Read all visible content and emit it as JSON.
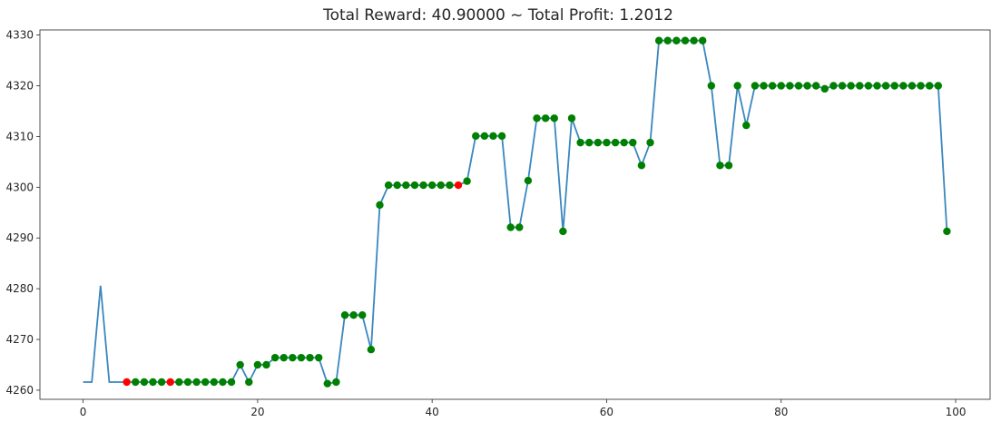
{
  "chart_data": {
    "type": "line",
    "title": "Total Reward: 40.90000 ~ Total Profit: 1.2012",
    "xlabel": "",
    "ylabel": "",
    "xlim": [
      -4.95,
      103.95
    ],
    "ylim": [
      4258.2,
      4331.0
    ],
    "grid": false,
    "x_ticks": [
      0,
      20,
      40,
      60,
      80,
      100
    ],
    "y_ticks": [
      4260,
      4270,
      4280,
      4290,
      4300,
      4310,
      4320,
      4330
    ],
    "colors": {
      "line": "#3a87bf",
      "long": "#008000",
      "short": "#ff0000"
    },
    "series": [
      {
        "x": [
          0,
          1,
          2,
          3,
          4,
          5,
          6,
          7,
          8,
          9,
          10,
          11,
          12,
          13,
          14,
          15,
          16,
          17,
          18,
          19,
          20,
          21,
          22,
          23,
          24,
          25,
          26,
          27,
          28,
          29,
          30,
          31,
          32,
          33,
          34,
          35,
          36,
          37,
          38,
          39,
          40,
          41,
          42,
          43,
          44,
          45,
          46,
          47,
          48,
          49,
          50,
          51,
          52,
          53,
          54,
          55,
          56,
          57,
          58,
          59,
          60,
          61,
          62,
          63,
          64,
          65,
          66,
          67,
          68,
          69,
          70,
          71,
          72,
          73,
          74,
          75,
          76,
          77,
          78,
          79,
          80,
          81,
          82,
          83,
          84,
          85,
          86,
          87,
          88,
          89,
          90,
          91,
          92,
          93,
          94,
          95,
          96,
          97,
          98,
          99
        ],
        "y": [
          4261.6,
          4261.6,
          4280.6,
          4261.6,
          4261.6,
          4261.6,
          4261.6,
          4261.6,
          4261.6,
          4261.6,
          4261.6,
          4261.6,
          4261.6,
          4261.6,
          4261.6,
          4261.6,
          4261.6,
          4261.6,
          4265.0,
          4261.6,
          4265.0,
          4265.0,
          4266.4,
          4266.4,
          4266.4,
          4266.4,
          4266.4,
          4266.4,
          4261.3,
          4261.6,
          4274.8,
          4274.8,
          4274.8,
          4268.0,
          4296.5,
          4300.4,
          4300.4,
          4300.4,
          4300.4,
          4300.4,
          4300.4,
          4300.4,
          4300.4,
          4300.4,
          4301.2,
          4310.1,
          4310.1,
          4310.1,
          4310.1,
          4292.1,
          4292.1,
          4301.3,
          4313.6,
          4313.6,
          4313.6,
          4291.3,
          4313.6,
          4308.8,
          4308.8,
          4308.8,
          4308.8,
          4308.8,
          4308.8,
          4308.8,
          4304.3,
          4308.8,
          4328.9,
          4328.9,
          4328.9,
          4328.9,
          4328.9,
          4328.9,
          4320.0,
          4304.3,
          4304.3,
          4320.0,
          4312.2,
          4320.0,
          4320.0,
          4320.0,
          4320.0,
          4320.0,
          4320.0,
          4320.0,
          4320.0,
          4319.4,
          4320.0,
          4320.0,
          4320.0,
          4320.0,
          4320.0,
          4320.0,
          4320.0,
          4320.0,
          4320.0,
          4320.0,
          4320.0,
          4320.0,
          4320.0,
          4291.3
        ],
        "short_x": [
          5,
          10,
          43
        ],
        "long_x": [
          6,
          7,
          8,
          9,
          11,
          12,
          13,
          14,
          15,
          16,
          17,
          18,
          19,
          20,
          21,
          22,
          23,
          24,
          25,
          26,
          27,
          28,
          29,
          30,
          31,
          32,
          33,
          34,
          35,
          36,
          37,
          38,
          39,
          40,
          41,
          42,
          44,
          45,
          46,
          47,
          48,
          49,
          50,
          51,
          52,
          53,
          54,
          55,
          56,
          57,
          58,
          59,
          60,
          61,
          62,
          63,
          64,
          65,
          66,
          67,
          68,
          69,
          70,
          71,
          72,
          73,
          74,
          75,
          76,
          77,
          78,
          79,
          80,
          81,
          82,
          83,
          84,
          85,
          86,
          87,
          88,
          89,
          90,
          91,
          92,
          93,
          94,
          95,
          96,
          97,
          98,
          99
        ]
      }
    ]
  }
}
